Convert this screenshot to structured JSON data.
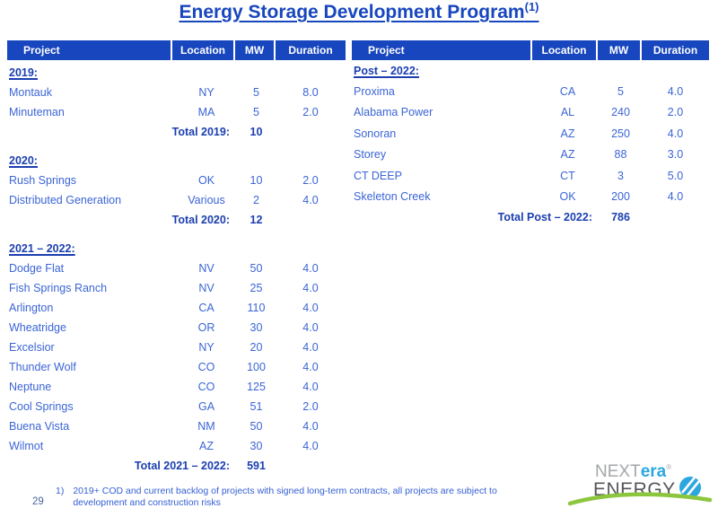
{
  "title": {
    "text": "Energy Storage Development Program",
    "footnote_ref": "(1)"
  },
  "colors": {
    "header_bg": "#1746BE",
    "title_blue": "#1746BE",
    "dark_blue": "#1C3FB0",
    "body_blue": "#3B65D6",
    "footnote_blue": "#3560D5",
    "page_number": "#47679F",
    "logo_gray": "#A4A7AA",
    "logo_blue": "#2AA7DF",
    "logo_dark": "#55565A",
    "logo_green": "#8CC63E"
  },
  "tables": [
    {
      "id": "left",
      "headers": [
        "Project",
        "Location",
        "MW",
        "Duration"
      ],
      "sections": [
        {
          "label": "2019:",
          "rows": [
            {
              "project": "Montauk",
              "location": "NY",
              "mw": "5",
              "duration": "8.0"
            },
            {
              "project": "Minuteman",
              "location": "MA",
              "mw": "5",
              "duration": "2.0"
            }
          ],
          "total_label": "Total 2019:",
          "total_value": "10"
        },
        {
          "label": "2020:",
          "rows": [
            {
              "project": "Rush Springs",
              "location": "OK",
              "mw": "10",
              "duration": "2.0"
            },
            {
              "project": "Distributed Generation",
              "location": "Various",
              "mw": "2",
              "duration": "4.0"
            }
          ],
          "total_label": "Total 2020:",
          "total_value": "12"
        },
        {
          "label": "2021 – 2022:",
          "rows": [
            {
              "project": "Dodge Flat",
              "location": "NV",
              "mw": "50",
              "duration": "4.0"
            },
            {
              "project": "Fish Springs Ranch",
              "location": "NV",
              "mw": "25",
              "duration": "4.0"
            },
            {
              "project": "Arlington",
              "location": "CA",
              "mw": "110",
              "duration": "4.0"
            },
            {
              "project": "Wheatridge",
              "location": "OR",
              "mw": "30",
              "duration": "4.0"
            },
            {
              "project": "Excelsior",
              "location": "NY",
              "mw": "20",
              "duration": "4.0"
            },
            {
              "project": "Thunder Wolf",
              "location": "CO",
              "mw": "100",
              "duration": "4.0"
            },
            {
              "project": "Neptune",
              "location": "CO",
              "mw": "125",
              "duration": "4.0"
            },
            {
              "project": "Cool Springs",
              "location": "GA",
              "mw": "51",
              "duration": "2.0"
            },
            {
              "project": "Buena Vista",
              "location": "NM",
              "mw": "50",
              "duration": "4.0"
            },
            {
              "project": "Wilmot",
              "location": "AZ",
              "mw": "30",
              "duration": "4.0"
            }
          ],
          "total_label": "Total 2021 – 2022:",
          "total_value": "591"
        }
      ]
    },
    {
      "id": "right",
      "headers": [
        "Project",
        "Location",
        "MW",
        "Duration"
      ],
      "sections": [
        {
          "label": "Post – 2022:",
          "rows": [
            {
              "project": "Proxima",
              "location": "CA",
              "mw": "5",
              "duration": "4.0"
            },
            {
              "project": "Alabama Power",
              "location": "AL",
              "mw": "240",
              "duration": "2.0"
            },
            {
              "project": "Sonoran",
              "location": "AZ",
              "mw": "250",
              "duration": "4.0"
            },
            {
              "project": "Storey",
              "location": "AZ",
              "mw": "88",
              "duration": "3.0"
            },
            {
              "project": "CT DEEP",
              "location": "CT",
              "mw": "3",
              "duration": "5.0"
            },
            {
              "project": "Skeleton Creek",
              "location": "OK",
              "mw": "200",
              "duration": "4.0"
            }
          ],
          "total_label": "Total Post – 2022:",
          "total_value": "786"
        }
      ]
    }
  ],
  "footnote": {
    "number": "1)",
    "lines": [
      "2019+ COD and current backlog of projects with signed long-term contracts, all projects are subject to",
      "development and construction risks"
    ]
  },
  "page_number": "29",
  "logo": {
    "next": "NEXT",
    "era": "era",
    "reg": "®",
    "energy": "ENERGY"
  }
}
